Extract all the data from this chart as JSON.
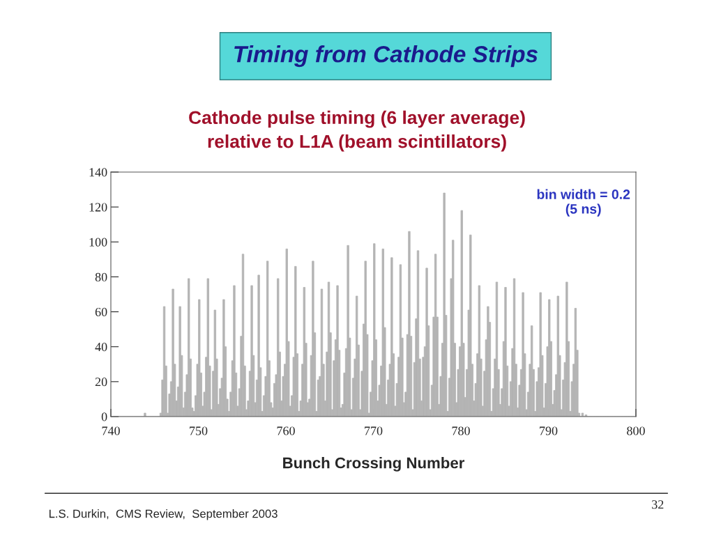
{
  "chart_data": {
    "type": "histogram",
    "title": "Timing from Cathode Strips",
    "subtitle": "Cathode pulse timing (6 layer average)\nrelative to L1A (beam scintillators)",
    "xlabel": "Bunch Crossing Number",
    "annotations": [
      "bin width = 0.2\n(5 ns)",
      "L.S. Durkin,  CMS Review,  September 2003",
      "32"
    ],
    "color": "#b4b4b4",
    "bins": [
      740,
      740.2,
      740.4,
      740.6,
      740.8,
      741,
      741.2,
      741.4,
      741.6,
      741.8,
      742,
      742.2,
      742.4,
      742.6,
      742.8,
      743,
      743.2,
      743.4,
      743.6,
      743.8,
      744,
      744.2,
      744.4,
      744.6,
      744.8,
      745,
      745.2,
      745.4,
      745.6,
      745.8,
      746,
      746.2,
      746.4,
      746.6,
      746.8,
      747,
      747.2,
      747.4,
      747.6,
      747.8,
      748,
      748.2,
      748.4,
      748.6,
      748.8,
      749,
      749.2,
      749.4,
      749.6,
      749.8,
      750,
      750.2,
      750.4,
      750.6,
      750.8,
      751,
      751.2,
      751.4,
      751.6,
      751.8,
      752,
      752.2,
      752.4,
      752.6,
      752.8,
      753,
      753.2,
      753.4,
      753.6,
      753.8,
      754,
      754.2,
      754.4,
      754.6,
      754.8,
      755,
      755.2,
      755.4,
      755.6,
      755.8,
      756,
      756.2,
      756.4,
      756.6,
      756.8,
      757,
      757.2,
      757.4,
      757.6,
      757.8,
      758,
      758.2,
      758.4,
      758.6,
      758.8,
      759,
      759.2,
      759.4,
      759.6,
      759.8,
      760,
      760.2,
      760.4,
      760.6,
      760.8,
      761,
      761.2,
      761.4,
      761.6,
      761.8,
      762,
      762.2,
      762.4,
      762.6,
      762.8,
      763,
      763.2,
      763.4,
      763.6,
      763.8,
      764,
      764.2,
      764.4,
      764.6,
      764.8,
      765,
      765.2,
      765.4,
      765.6,
      765.8,
      766,
      766.2,
      766.4,
      766.6,
      766.8,
      767,
      767.2,
      767.4,
      767.6,
      767.8,
      768,
      768.2,
      768.4,
      768.6,
      768.8,
      769,
      769.2,
      769.4,
      769.6,
      769.8,
      770,
      770.2,
      770.4,
      770.6,
      770.8,
      771,
      771.2,
      771.4,
      771.6,
      771.8,
      772,
      772.2,
      772.4,
      772.6,
      772.8,
      773,
      773.2,
      773.4,
      773.6,
      773.8,
      774,
      774.2,
      774.4,
      774.6,
      774.8,
      775,
      775.2,
      775.4,
      775.6,
      775.8,
      776,
      776.2,
      776.4,
      776.6,
      776.8,
      777,
      777.2,
      777.4,
      777.6,
      777.8,
      778,
      778.2,
      778.4,
      778.6,
      778.8,
      779,
      779.2,
      779.4,
      779.6,
      779.8,
      780,
      780.2,
      780.4,
      780.6,
      780.8,
      781,
      781.2,
      781.4,
      781.6,
      781.8,
      782,
      782.2,
      782.4,
      782.6,
      782.8,
      783,
      783.2,
      783.4,
      783.6,
      783.8,
      784,
      784.2,
      784.4,
      784.6,
      784.8,
      785,
      785.2,
      785.4,
      785.6,
      785.8,
      786,
      786.2,
      786.4,
      786.6,
      786.8,
      787,
      787.2,
      787.4,
      787.6,
      787.8,
      788,
      788.2,
      788.4,
      788.6,
      788.8,
      789,
      789.2,
      789.4,
      789.6,
      789.8,
      790,
      790.2,
      790.4,
      790.6,
      790.8,
      791,
      791.2,
      791.4,
      791.6,
      791.8,
      792,
      792.2,
      792.4,
      792.6,
      792.8,
      793,
      793.2,
      793.4,
      793.6,
      793.8,
      794,
      794.2,
      794.4,
      794.6,
      794.8,
      795,
      795.2,
      795.4,
      795.6,
      795.8,
      796,
      796.2,
      796.4,
      796.6,
      796.8,
      797,
      797.2,
      797.4,
      797.6,
      797.8,
      798,
      798.2,
      798.4,
      798.6,
      798.8,
      799,
      799.2,
      799.4,
      799.6,
      799.8,
      800
    ],
    "values": [
      0,
      0,
      0,
      0,
      0,
      0,
      0,
      0,
      0,
      0,
      0,
      0,
      0,
      0,
      0,
      0,
      0,
      0,
      0,
      2,
      0,
      0,
      0,
      0,
      0,
      0,
      0,
      0,
      2,
      21,
      63,
      29,
      2,
      13,
      20,
      73,
      30,
      9,
      17,
      63,
      35,
      5,
      14,
      24,
      79,
      33,
      5,
      3,
      12,
      30,
      67,
      25,
      6,
      14,
      34,
      79,
      29,
      4,
      26,
      61,
      33,
      7,
      16,
      22,
      67,
      40,
      10,
      3,
      14,
      32,
      75,
      25,
      6,
      16,
      46,
      93,
      29,
      4,
      9,
      26,
      75,
      35,
      8,
      21,
      81,
      28,
      3,
      12,
      23,
      89,
      32,
      8,
      5,
      19,
      24,
      79,
      37,
      9,
      23,
      30,
      96,
      43,
      6,
      12,
      34,
      86,
      36,
      3,
      9,
      30,
      74,
      42,
      8,
      10,
      35,
      89,
      48,
      3,
      21,
      23,
      73,
      30,
      9,
      37,
      77,
      48,
      4,
      32,
      44,
      75,
      38,
      5,
      7,
      25,
      39,
      98,
      45,
      4,
      22,
      33,
      69,
      41,
      4,
      26,
      53,
      89,
      47,
      2,
      14,
      32,
      99,
      44,
      9,
      18,
      29,
      96,
      51,
      7,
      21,
      30,
      91,
      36,
      6,
      19,
      34,
      87,
      45,
      8,
      14,
      47,
      106,
      46,
      4,
      31,
      56,
      95,
      33,
      9,
      34,
      40,
      85,
      52,
      4,
      18,
      57,
      93,
      57,
      7,
      23,
      42,
      128,
      58,
      3,
      22,
      79,
      101,
      42,
      8,
      27,
      40,
      118,
      42,
      11,
      27,
      61,
      104,
      30,
      9,
      19,
      36,
      75,
      33,
      6,
      26,
      44,
      63,
      54,
      3,
      16,
      33,
      77,
      27,
      7,
      16,
      43,
      74,
      29,
      6,
      20,
      39,
      79,
      30,
      5,
      18,
      27,
      71,
      36,
      4,
      14,
      30,
      52,
      27,
      3,
      20,
      28,
      71,
      35,
      5,
      19,
      40,
      67,
      43,
      7,
      15,
      24,
      69,
      35,
      4,
      21,
      31,
      77,
      43,
      3,
      20,
      30,
      62,
      38,
      2,
      0,
      2,
      0,
      1,
      0,
      0,
      0,
      0,
      0,
      0,
      0,
      0,
      0,
      0,
      0,
      0,
      0,
      0,
      0,
      0,
      0,
      0,
      0,
      0,
      0,
      0,
      0,
      0,
      0,
      0,
      0,
      0
    ],
    "xlim": [
      740,
      800
    ],
    "xticks": [
      740,
      750,
      760,
      770,
      780,
      790,
      800
    ],
    "ylim": [
      0,
      140
    ],
    "yticks": [
      0,
      20,
      40,
      60,
      80,
      100,
      120,
      140
    ],
    "grid": false
  }
}
